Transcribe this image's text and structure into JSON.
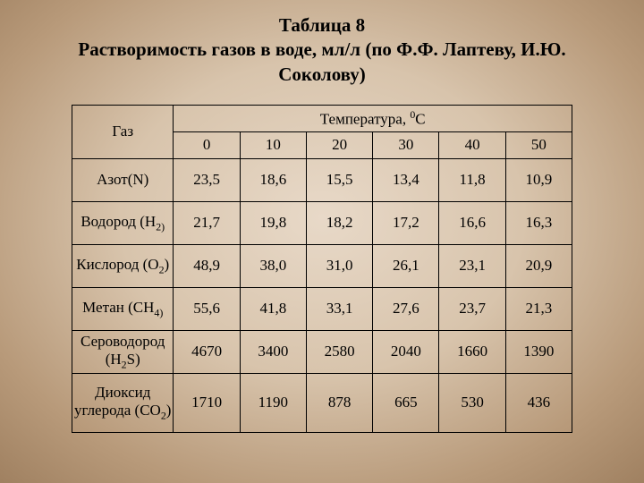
{
  "title": "Таблица 8\nРастворимость газов в воде, мл/л (по Ф.Ф. Лаптеву, И.Ю. Соколову)",
  "table": {
    "gas_header": "Газ",
    "temp_header": "Температура, ",
    "temp_unit_sup": "0",
    "temp_unit": "С",
    "columns": [
      "0",
      "10",
      "20",
      "30",
      "40",
      "50"
    ],
    "rows": [
      {
        "label": "Азот(N)",
        "values": [
          "23,5",
          "18,6",
          "15,5",
          "13,4",
          "11,8",
          "10,9"
        ]
      },
      {
        "label_pre": "Водород (Н",
        "sub": "2)",
        "label_post": "",
        "values": [
          "21,7",
          "19,8",
          "18,2",
          "17,2",
          "16,6",
          "16,3"
        ]
      },
      {
        "label_pre": "Кислород (О",
        "sub": "2",
        "label_post": ")",
        "values": [
          "48,9",
          "38,0",
          "31,0",
          "26,1",
          "23,1",
          "20,9"
        ]
      },
      {
        "label_pre": "Метан (СН",
        "sub": "4)",
        "label_post": "",
        "values": [
          "55,6",
          "41,8",
          "33,1",
          "27,6",
          "23,7",
          "21,3"
        ]
      },
      {
        "label_pre": "Сероводород (Н",
        "sub": "2",
        "label_post": "S)",
        "values": [
          "4670",
          "3400",
          "2580",
          "2040",
          "1660",
          "1390"
        ]
      },
      {
        "label_pre": "Диоксид углерода (СО",
        "sub": "2",
        "label_post": ")",
        "values": [
          "1710",
          "1190",
          "878",
          "665",
          "530",
          "436"
        ],
        "tall": true
      }
    ]
  }
}
